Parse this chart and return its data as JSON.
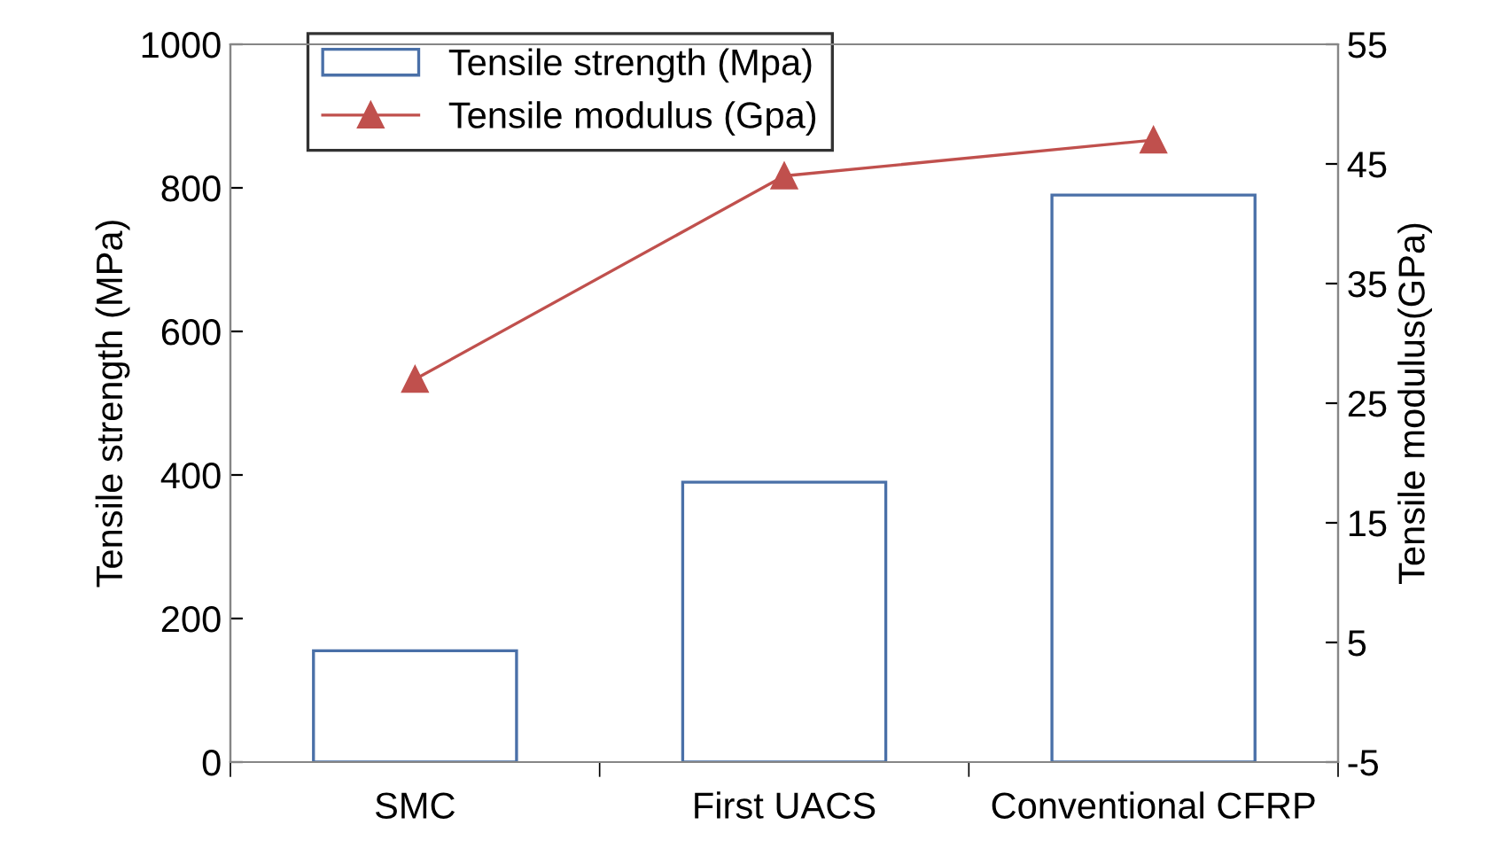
{
  "chart_data": {
    "type": "bar",
    "categories": [
      "SMC",
      "First UACS",
      "Conventional CFRP"
    ],
    "ylabel": "Tensile strength (MPa)",
    "y2label": "Tensile modulus(GPa)",
    "ylim": [
      0,
      1000
    ],
    "yticks": [
      0,
      200,
      400,
      600,
      800,
      1000
    ],
    "y2lim": [
      -5,
      55
    ],
    "y2ticks": [
      {
        "value": -5,
        "label": "-5"
      },
      5,
      15,
      25,
      35,
      45,
      55
    ],
    "legend": "top left",
    "grid": false,
    "series": [
      {
        "name": "Tensile strength (Mpa)",
        "color": "#4a70a8",
        "values": [
          155,
          390,
          790
        ]
      },
      {
        "name": "Tensile modulus (Gpa)",
        "type": "line",
        "axis": "y2",
        "color": "#c0504d",
        "marker": "triangle",
        "values": [
          27,
          44,
          47
        ]
      }
    ]
  }
}
